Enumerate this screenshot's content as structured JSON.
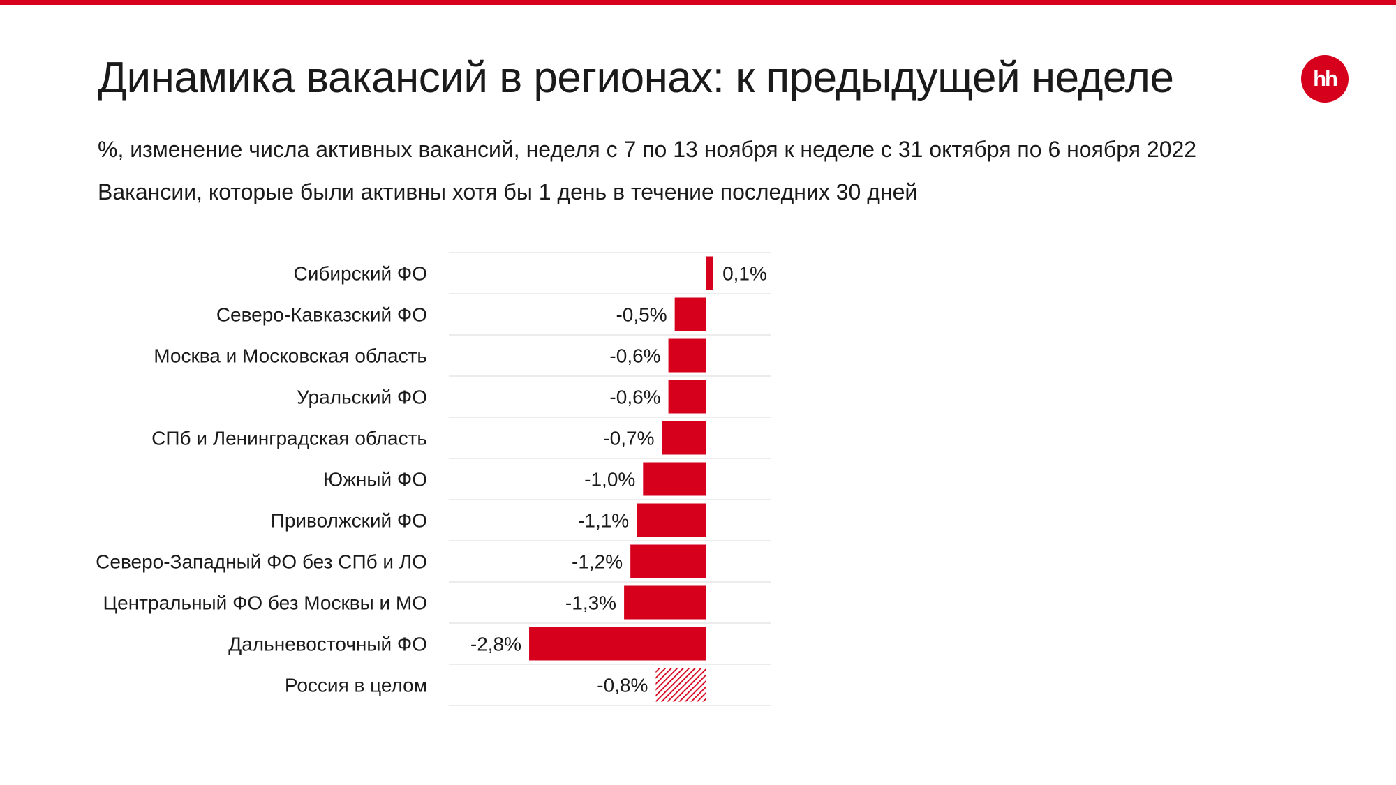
{
  "header": {
    "title": "Динамика вакансий в регионах: к предыдущей неделе",
    "subtitle_1": "%, изменение числа активных вакансий, неделя с 7 по 13 ноября к неделе с 31 октября по 6 ноября 2022",
    "subtitle_2": "Вакансии, которые были активны хотя бы 1 день в течение последних 30 дней",
    "logo_text": "hh"
  },
  "colors": {
    "accent": "#d6001c",
    "row_divider": "#e6e6e6"
  },
  "chart_data": {
    "type": "bar",
    "orientation": "horizontal",
    "title": "",
    "xlabel": "",
    "ylabel": "",
    "grid": false,
    "legend": "none",
    "categories": [
      "Сибирский ФО",
      "Северо-Кавказский ФО",
      "Москва и Московская область",
      "Уральский ФО",
      "СПб и Ленинградская область",
      "Южный ФО",
      "Приволжский ФО",
      "Северо-Западный ФО без СПб и ЛО",
      "Центральный ФО без Москвы и МО",
      "Дальневосточный ФО",
      "Россия в целом"
    ],
    "values": [
      0.1,
      -0.5,
      -0.6,
      -0.6,
      -0.7,
      -1.0,
      -1.1,
      -1.2,
      -1.3,
      -2.8,
      -0.8
    ],
    "value_labels": [
      "0,1%",
      "-0,5%",
      "-0,6%",
      "-0,6%",
      "-0,7%",
      "-1,0%",
      "-1,1%",
      "-1,2%",
      "-1,3%",
      "-2,8%",
      "-0,8%"
    ],
    "hatched": [
      false,
      false,
      false,
      false,
      false,
      false,
      false,
      false,
      false,
      false,
      true
    ],
    "xlim": [
      -2.8,
      0.1
    ]
  }
}
